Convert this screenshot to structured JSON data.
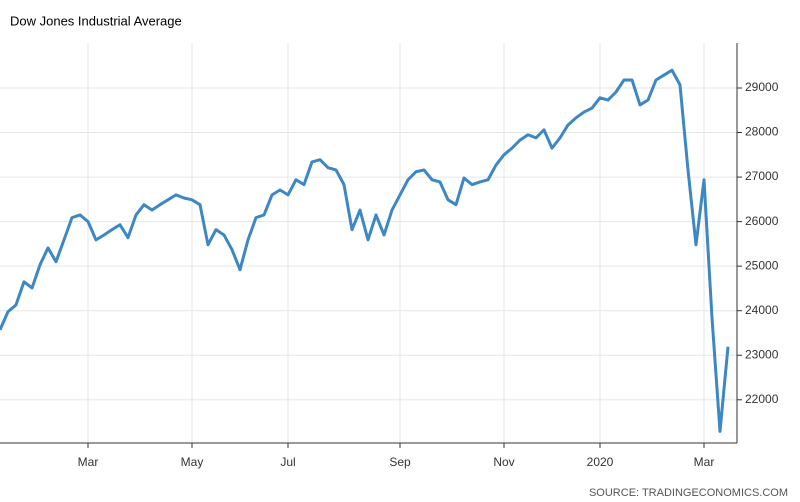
{
  "chart_data": {
    "type": "line",
    "title": "Dow Jones Industrial Average",
    "source": "SOURCE: TRADINGECONOMICS.COM",
    "categories": [
      null,
      null,
      null,
      null,
      null,
      null,
      null,
      null,
      null,
      null,
      null,
      "Mar",
      null,
      null,
      null,
      null,
      null,
      null,
      null,
      null,
      null,
      null,
      null,
      null,
      "May",
      null,
      null,
      null,
      null,
      null,
      null,
      null,
      null,
      null,
      null,
      null,
      "Jul",
      null,
      null,
      null,
      null,
      null,
      null,
      null,
      null,
      null,
      null,
      null,
      null,
      null,
      "Sep",
      null,
      null,
      null,
      null,
      null,
      null,
      null,
      null,
      null,
      null,
      null,
      null,
      "Nov",
      null,
      null,
      null,
      null,
      null,
      null,
      null,
      null,
      null,
      null,
      null,
      "2020",
      null,
      null,
      null,
      null,
      null,
      null,
      null,
      null,
      null,
      null,
      null,
      null,
      "Mar",
      null,
      null,
      null
    ],
    "series": [
      {
        "name": "Dow Jones Industrial Average",
        "color": "#3d87c4",
        "values": [
          23570,
          23980,
          24130,
          24650,
          24510,
          25030,
          25410,
          25100,
          25590,
          26090,
          26150,
          26000,
          25590,
          25700,
          25820,
          25930,
          25640,
          26150,
          26380,
          26260,
          26380,
          26490,
          26600,
          26530,
          26490,
          26380,
          25480,
          25820,
          25700,
          25370,
          24920,
          25590,
          26090,
          26150,
          26600,
          26710,
          26600,
          26940,
          26830,
          27340,
          27390,
          27210,
          27160,
          26830,
          25820,
          26260,
          25590,
          26150,
          25700,
          26260,
          26600,
          26940,
          27120,
          27160,
          26940,
          26890,
          26490,
          26380,
          26980,
          26830,
          26890,
          26940,
          27270,
          27500,
          27650,
          27830,
          27950,
          27880,
          28060,
          27650,
          27880,
          28170,
          28330,
          28460,
          28550,
          28780,
          28730,
          28910,
          29180,
          29180,
          28620,
          28730,
          29180,
          29290,
          29400,
          29070,
          27160,
          25480,
          26940,
          23840,
          21290,
          23190
        ]
      }
    ],
    "ylim": [
      21030,
      30010
    ],
    "yticks": [
      22000,
      23000,
      24000,
      25000,
      26000,
      27000,
      28000,
      29000
    ],
    "grid": true,
    "y_axis_side": "right"
  }
}
